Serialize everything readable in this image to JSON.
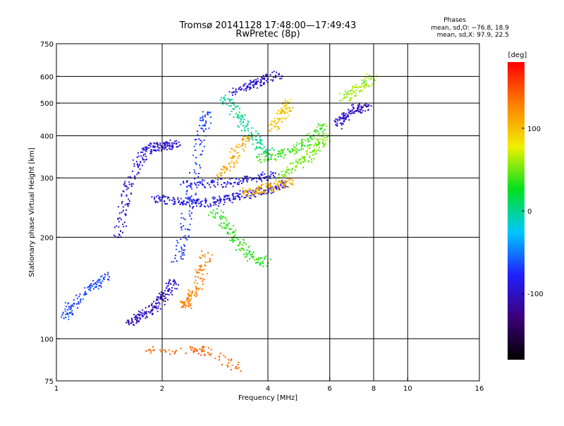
{
  "chart_data": {
    "type": "scatter",
    "title": "Tromsø 20141128 17:48:00—17:49:43",
    "subtitle": "RwPretec (8p)",
    "xlabel": "Frequency [MHz]",
    "ylabel": "Stationary phase Virtual Height [km]",
    "x_scale": "log2",
    "y_scale": "log",
    "xlim": [
      1,
      16
    ],
    "ylim": [
      75,
      750
    ],
    "x_ticks": [
      1,
      2,
      4,
      6,
      8,
      10,
      16
    ],
    "x_gridlines": [
      2,
      4,
      6,
      8,
      10
    ],
    "y_ticks": [
      75,
      100,
      200,
      300,
      400,
      500,
      600,
      750
    ],
    "y_gridlines": [
      100,
      200,
      300,
      400,
      500,
      600
    ],
    "grid": true,
    "stats": {
      "heading": "Phases",
      "line_o": "mean, sd,O: −76.8, 18.9",
      "line_x": "mean, sd,X:  97.9, 22.5"
    },
    "colorbar": {
      "label": "[deg]",
      "min": -180,
      "max": 180,
      "ticks": [
        100,
        0,
        -100
      ],
      "palette": [
        "#000000",
        "#3c007a",
        "#2020ff",
        "#00c8ff",
        "#00e020",
        "#f0f000",
        "#ff8000",
        "#ff0000"
      ]
    },
    "series": [
      {
        "phase_deg": -105,
        "points": [
          [
            1.6,
            112
          ],
          [
            1.7,
            115
          ],
          [
            1.8,
            119
          ],
          [
            1.9,
            124
          ],
          [
            2.0,
            131
          ],
          [
            2.1,
            140
          ],
          [
            2.15,
            148
          ]
        ]
      },
      {
        "phase_deg": -95,
        "points": [
          [
            1.5,
            200
          ],
          [
            1.55,
            240
          ],
          [
            1.6,
            280
          ],
          [
            1.7,
            330
          ],
          [
            1.8,
            360
          ],
          [
            1.9,
            370
          ],
          [
            2.0,
            372
          ],
          [
            2.1,
            375
          ],
          [
            2.2,
            380
          ]
        ]
      },
      {
        "phase_deg": -90,
        "points": [
          [
            1.9,
            260
          ],
          [
            2.1,
            258
          ],
          [
            2.3,
            255
          ],
          [
            2.5,
            252
          ],
          [
            2.8,
            254
          ],
          [
            3.0,
            258
          ],
          [
            3.3,
            265
          ],
          [
            3.6,
            270
          ],
          [
            3.9,
            275
          ],
          [
            4.2,
            283
          ],
          [
            4.5,
            292
          ]
        ]
      },
      {
        "phase_deg": -85,
        "points": [
          [
            2.3,
            290
          ],
          [
            2.6,
            288
          ],
          [
            3.0,
            290
          ],
          [
            3.4,
            295
          ],
          [
            3.8,
            300
          ],
          [
            4.2,
            310
          ]
        ]
      },
      {
        "phase_deg": -70,
        "points": [
          [
            2.2,
            170
          ],
          [
            2.3,
            200
          ],
          [
            2.4,
            260
          ],
          [
            2.5,
            330
          ],
          [
            2.6,
            420
          ],
          [
            2.7,
            470
          ]
        ]
      },
      {
        "phase_deg": -95,
        "points": [
          [
            3.2,
            540
          ],
          [
            3.5,
            560
          ],
          [
            3.7,
            570
          ],
          [
            4.0,
            590
          ],
          [
            4.3,
            610
          ]
        ]
      },
      {
        "phase_deg": -65,
        "points": [
          [
            1.05,
            115
          ],
          [
            1.1,
            125
          ],
          [
            1.2,
            135
          ],
          [
            1.3,
            145
          ],
          [
            1.4,
            155
          ]
        ]
      },
      {
        "phase_deg": 0,
        "points": [
          [
            3.0,
            520
          ],
          [
            3.2,
            480
          ],
          [
            3.4,
            440
          ],
          [
            3.6,
            400
          ],
          [
            3.8,
            370
          ],
          [
            4.1,
            350
          ]
        ]
      },
      {
        "phase_deg": 35,
        "points": [
          [
            2.8,
            240
          ],
          [
            3.0,
            220
          ],
          [
            3.2,
            200
          ],
          [
            3.4,
            185
          ],
          [
            3.6,
            175
          ],
          [
            4.0,
            168
          ]
        ]
      },
      {
        "phase_deg": 50,
        "points": [
          [
            4.3,
            300
          ],
          [
            4.7,
            320
          ],
          [
            5.1,
            340
          ],
          [
            5.4,
            360
          ],
          [
            5.6,
            380
          ],
          [
            5.8,
            395
          ]
        ]
      },
      {
        "phase_deg": 40,
        "points": [
          [
            3.8,
            340
          ],
          [
            4.2,
            350
          ],
          [
            4.6,
            360
          ],
          [
            5.0,
            375
          ],
          [
            5.4,
            400
          ],
          [
            5.7,
            430
          ]
        ]
      },
      {
        "phase_deg": 130,
        "points": [
          [
            2.3,
            125
          ],
          [
            2.4,
            130
          ],
          [
            2.5,
            140
          ],
          [
            2.6,
            160
          ],
          [
            2.7,
            180
          ]
        ]
      },
      {
        "phase_deg": 110,
        "points": [
          [
            3.4,
            270
          ],
          [
            3.7,
            275
          ],
          [
            4.0,
            280
          ],
          [
            4.3,
            285
          ],
          [
            4.7,
            295
          ]
        ]
      },
      {
        "phase_deg": 110,
        "points": [
          [
            2.9,
            300
          ],
          [
            3.1,
            330
          ],
          [
            3.3,
            370
          ],
          [
            3.5,
            395
          ]
        ]
      },
      {
        "phase_deg": 95,
        "points": [
          [
            4.1,
            420
          ],
          [
            4.3,
            450
          ],
          [
            4.5,
            480
          ],
          [
            4.6,
            500
          ]
        ]
      },
      {
        "phase_deg": -100,
        "points": [
          [
            6.3,
            430
          ],
          [
            6.5,
            450
          ],
          [
            6.8,
            470
          ],
          [
            7.2,
            480
          ],
          [
            7.6,
            490
          ]
        ]
      },
      {
        "phase_deg": 60,
        "points": [
          [
            6.6,
            520
          ],
          [
            7.0,
            540
          ],
          [
            7.5,
            560
          ],
          [
            7.9,
            600
          ]
        ]
      },
      {
        "phase_deg": 140,
        "points": [
          [
            1.8,
            92
          ],
          [
            2.5,
            93
          ],
          [
            2.7,
            91
          ],
          [
            3.3,
            82
          ]
        ]
      }
    ]
  }
}
